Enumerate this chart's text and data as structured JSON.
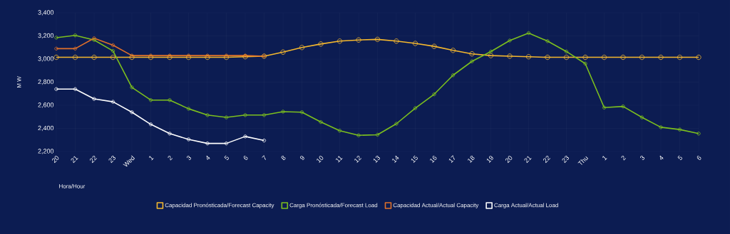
{
  "chart_data": {
    "type": "line",
    "xlabel": "Hora/Hour",
    "ylabel": "M W",
    "categories": [
      "20",
      "21",
      "22",
      "23",
      "Wed",
      "1",
      "2",
      "3",
      "4",
      "5",
      "6",
      "7",
      "8",
      "9",
      "10",
      "11",
      "12",
      "13",
      "14",
      "15",
      "16",
      "17",
      "18",
      "19",
      "20",
      "21",
      "22",
      "23",
      "Thu",
      "1",
      "2",
      "3",
      "4",
      "5",
      "6"
    ],
    "series": [
      {
        "name": "Capacidad Pronósticada/Forecast Capacity",
        "color": "#f5b82e",
        "values": [
          3015,
          3015,
          3015,
          3015,
          3015,
          3015,
          3015,
          3015,
          3015,
          3015,
          3020,
          3025,
          3060,
          3100,
          3130,
          3155,
          3165,
          3170,
          3155,
          3135,
          3110,
          3075,
          3045,
          3030,
          3025,
          3020,
          3015,
          3015,
          3015,
          3015,
          3015,
          3015,
          3015,
          3015,
          3015
        ]
      },
      {
        "name": "Carga Pronósticada/Forecast Load",
        "color": "#7cbf1e",
        "values": [
          3185,
          3205,
          3165,
          3070,
          2755,
          2645,
          2645,
          2570,
          2515,
          2495,
          2515,
          2515,
          2545,
          2540,
          2455,
          2380,
          2340,
          2345,
          2440,
          2575,
          2695,
          2860,
          2980,
          3065,
          3160,
          3225,
          3155,
          3065,
          2960,
          2580,
          2590,
          2495,
          2410,
          2390,
          2355
        ]
      },
      {
        "name": "Capacidad Actual/Actual Capacity",
        "color": "#e0702a",
        "values": [
          3090,
          3090,
          3180,
          3120,
          3030,
          3030,
          3030,
          3030,
          3030,
          3030,
          3030,
          3025,
          null,
          null,
          null,
          null,
          null,
          null,
          null,
          null,
          null,
          null,
          null,
          null,
          null,
          null,
          null,
          null,
          null,
          null,
          null,
          null,
          null,
          null,
          null
        ]
      },
      {
        "name": "Carga Actual/Actual Load",
        "color": "#ffffff",
        "values": [
          2740,
          2740,
          2655,
          2630,
          2540,
          2435,
          2355,
          2305,
          2270,
          2270,
          2330,
          2295,
          null,
          null,
          null,
          null,
          null,
          null,
          null,
          null,
          null,
          null,
          null,
          null,
          null,
          null,
          null,
          null,
          null,
          null,
          null,
          null,
          null,
          null,
          null
        ]
      }
    ],
    "ylim": [
      2200,
      3400
    ],
    "yticks": [
      {
        "value": 2200,
        "label": "2,200"
      },
      {
        "value": 2400,
        "label": "2,400"
      },
      {
        "value": 2600,
        "label": "2,600"
      },
      {
        "value": 2800,
        "label": "2,800"
      },
      {
        "value": 3000,
        "label": "3,000"
      },
      {
        "value": 3200,
        "label": "3,200"
      },
      {
        "value": 3400,
        "label": "3,400"
      }
    ],
    "grid": true,
    "legend": "bottom",
    "marker": "circle",
    "line_style": "solid"
  }
}
